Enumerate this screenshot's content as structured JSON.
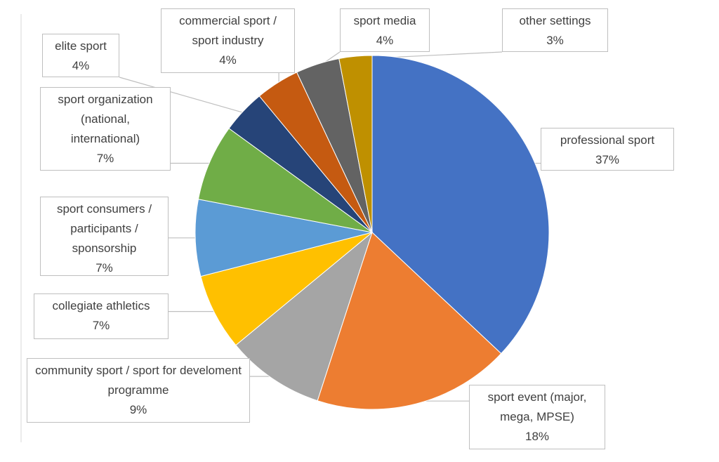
{
  "chart_data": {
    "type": "pie",
    "categories": [
      "professional sport",
      "sport event (major, mega, MPSE)",
      "community sport / sport for develoment programme",
      "collegiate athletics",
      "sport consumers / participants / sponsorship",
      "sport organization (national, international)",
      "elite sport",
      "commercial sport / sport industry",
      "sport media",
      "other settings"
    ],
    "values": [
      37,
      18,
      9,
      7,
      7,
      7,
      4,
      4,
      4,
      3
    ],
    "value_labels": [
      "37%",
      "18%",
      "9%",
      "7%",
      "7%",
      "7%",
      "4%",
      "4%",
      "4%",
      "3%"
    ],
    "colors": [
      "#4472c4",
      "#ed7d31",
      "#a5a5a5",
      "#ffc000",
      "#5b9bd5",
      "#70ad47",
      "#264478",
      "#c55a11",
      "#636363",
      "#bf9000"
    ]
  }
}
